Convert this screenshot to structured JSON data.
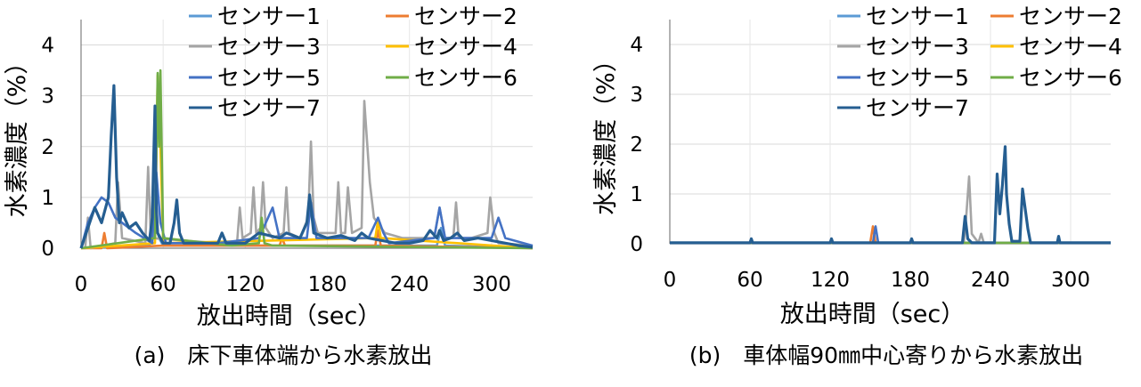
{
  "chart_data": [
    {
      "type": "line",
      "caption": "(a)　床下車体端から水素放出",
      "xlabel": "放出時間（sec）",
      "ylabel": "水素濃度（%）",
      "xlim": [
        0,
        330
      ],
      "ylim": [
        0,
        4.5
      ],
      "xticks": [
        "0",
        "60",
        "120",
        "180",
        "240",
        "300"
      ],
      "yticks": [
        "0",
        "1",
        "2",
        "3",
        "4"
      ],
      "grid": true,
      "legend_position": "top-right",
      "series": [
        {
          "name": "センサー1",
          "color": "#5b9bd5",
          "x": [
            0,
            50,
            54,
            57,
            60,
            100,
            200,
            260,
            263,
            266,
            330
          ],
          "y": [
            0,
            0.05,
            0.5,
            0.2,
            0.05,
            0.05,
            0.05,
            0.05,
            0.4,
            0.05,
            0
          ]
        },
        {
          "name": "センサー2",
          "color": "#ed7d31",
          "x": [
            0,
            15,
            17,
            19,
            60,
            145,
            147,
            149,
            215,
            217,
            219,
            330
          ],
          "y": [
            0,
            0,
            0.3,
            0,
            0.05,
            0.05,
            0.2,
            0.05,
            0.05,
            0.35,
            0.05,
            0
          ]
        },
        {
          "name": "センサー3",
          "color": "#a5a5a5",
          "x": [
            0,
            3,
            5,
            7,
            25,
            27,
            30,
            47,
            49,
            51,
            100,
            114,
            116,
            118,
            124,
            126,
            128,
            131,
            133,
            135,
            140,
            148,
            150,
            152,
            160,
            166,
            168,
            170,
            173,
            186,
            188,
            190,
            193,
            195,
            198,
            205,
            207,
            211,
            214,
            222,
            235,
            258,
            262,
            266,
            272,
            274,
            276,
            285,
            297,
            299,
            302,
            305,
            330
          ],
          "y": [
            0,
            0,
            0.6,
            0,
            0.1,
            1.3,
            0.2,
            0.1,
            1.6,
            0.2,
            0.1,
            0.1,
            0.8,
            0.2,
            0.3,
            1.2,
            0.3,
            0.4,
            1.3,
            0.4,
            0.2,
            0.3,
            1.2,
            0.3,
            0.2,
            0.6,
            2.1,
            0.6,
            0.3,
            0.3,
            1.3,
            0.3,
            0.3,
            1.2,
            0.3,
            0.4,
            2.9,
            1.3,
            0.6,
            0.3,
            0.2,
            0.2,
            0.8,
            0.2,
            0.2,
            0.9,
            0.2,
            0.2,
            0.3,
            1.0,
            0.3,
            0.1,
            0.05
          ]
        },
        {
          "name": "センサー4",
          "color": "#ffc000",
          "x": [
            0,
            54,
            56,
            58,
            60,
            215,
            217,
            219,
            330
          ],
          "y": [
            0,
            0.1,
            3.4,
            2.0,
            0.1,
            0.2,
            0.55,
            0.2,
            0
          ]
        },
        {
          "name": "センサー5",
          "color": "#4472c4",
          "x": [
            0,
            5,
            10,
            15,
            20,
            25,
            30,
            35,
            40,
            52,
            55,
            58,
            62,
            100,
            130,
            140,
            145,
            165,
            168,
            172,
            210,
            217,
            221,
            225,
            258,
            262,
            266,
            300,
            305,
            310,
            330
          ],
          "y": [
            0,
            0.5,
            0.8,
            1.0,
            0.9,
            0.6,
            0.5,
            0.4,
            0.3,
            0.1,
            1.5,
            0.5,
            0.1,
            0.1,
            0.2,
            0.8,
            0.2,
            0.2,
            0.9,
            0.2,
            0.2,
            0.6,
            0.3,
            0.1,
            0.2,
            0.8,
            0.2,
            0.2,
            0.6,
            0.2,
            0.05
          ]
        },
        {
          "name": "センサー6",
          "color": "#70ad47",
          "x": [
            0,
            54,
            56,
            57,
            58,
            60,
            110,
            130,
            132,
            134,
            140,
            330
          ],
          "y": [
            0,
            0.2,
            3.45,
            2.0,
            3.5,
            0.2,
            0.05,
            0.1,
            0.6,
            0.1,
            0.05,
            0
          ]
        },
        {
          "name": "センサー7",
          "color": "#255e91",
          "x": [
            0,
            10,
            15,
            20,
            22,
            24,
            26,
            28,
            30,
            35,
            40,
            45,
            50,
            52,
            54,
            55,
            56,
            58,
            60,
            65,
            68,
            70,
            72,
            75,
            85,
            100,
            103,
            106,
            120,
            125,
            130,
            145,
            150,
            160,
            165,
            167,
            170,
            180,
            190,
            200,
            205,
            210,
            220,
            230,
            240,
            250,
            255,
            260,
            262,
            265,
            270,
            275,
            280,
            290,
            300,
            310,
            320,
            330
          ],
          "y": [
            0,
            0.8,
            0.5,
            1.0,
            2.2,
            3.2,
            1.4,
            0.5,
            0.7,
            0.4,
            0.5,
            0.3,
            0.15,
            0.6,
            2.8,
            0.8,
            0.3,
            0.2,
            0.1,
            0.1,
            0.5,
            0.95,
            0.3,
            0.1,
            0.1,
            0.1,
            0.3,
            0.1,
            0.1,
            0.2,
            0.3,
            0.2,
            0.3,
            0.2,
            0.5,
            1.05,
            0.3,
            0.2,
            0.25,
            0.15,
            0.3,
            0.2,
            0.15,
            0.1,
            0.1,
            0.15,
            0.35,
            0.2,
            0.35,
            0.15,
            0.2,
            0.3,
            0.15,
            0.2,
            0.15,
            0.1,
            0.05,
            0.02
          ]
        }
      ]
    },
    {
      "type": "line",
      "caption": "(b)　車体幅90㎜中心寄りから水素放出",
      "xlabel": "放出時間（sec）",
      "ylabel": "水素濃度（%）",
      "xlim": [
        0,
        330
      ],
      "ylim": [
        0,
        4.5
      ],
      "xticks": [
        "0",
        "60",
        "120",
        "180",
        "240",
        "300"
      ],
      "yticks": [
        "0",
        "1",
        "2",
        "3",
        "4"
      ],
      "grid": true,
      "legend_position": "top-right",
      "series": [
        {
          "name": "センサー1",
          "color": "#5b9bd5",
          "x": [
            0,
            330
          ],
          "y": [
            0.02,
            0.02
          ]
        },
        {
          "name": "センサー2",
          "color": "#ed7d31",
          "x": [
            0,
            150,
            152,
            154,
            330
          ],
          "y": [
            0.02,
            0.02,
            0.35,
            0.02,
            0.02
          ]
        },
        {
          "name": "センサー3",
          "color": "#a5a5a5",
          "x": [
            0,
            220,
            222,
            224,
            226,
            231,
            233,
            235,
            330
          ],
          "y": [
            0.02,
            0.02,
            0.6,
            1.35,
            0.2,
            0.02,
            0.2,
            0.02,
            0.02
          ]
        },
        {
          "name": "センサー4",
          "color": "#ffc000",
          "x": [
            0,
            330
          ],
          "y": [
            0.02,
            0.02
          ]
        },
        {
          "name": "センサー5",
          "color": "#4472c4",
          "x": [
            0,
            152,
            154,
            156,
            330
          ],
          "y": [
            0.02,
            0.02,
            0.35,
            0.02,
            0.02
          ]
        },
        {
          "name": "センサー6",
          "color": "#70ad47",
          "x": [
            0,
            330
          ],
          "y": [
            0.02,
            0.02
          ]
        },
        {
          "name": "センサー7",
          "color": "#255e91",
          "x": [
            0,
            60,
            61,
            62,
            120,
            121,
            122,
            180,
            181,
            182,
            219,
            221,
            223,
            226,
            243,
            245,
            247,
            249,
            251,
            252,
            254,
            256,
            262,
            264,
            266,
            268,
            270,
            290,
            291,
            292,
            330
          ],
          "y": [
            0.02,
            0.02,
            0.1,
            0.02,
            0.02,
            0.1,
            0.02,
            0.02,
            0.1,
            0.02,
            0.02,
            0.55,
            0.1,
            0.02,
            0.02,
            1.4,
            0.6,
            1.2,
            1.95,
            1.0,
            0.4,
            0.05,
            0.05,
            1.1,
            0.7,
            0.3,
            0.02,
            0.02,
            0.15,
            0.02,
            0.02
          ]
        }
      ]
    }
  ]
}
